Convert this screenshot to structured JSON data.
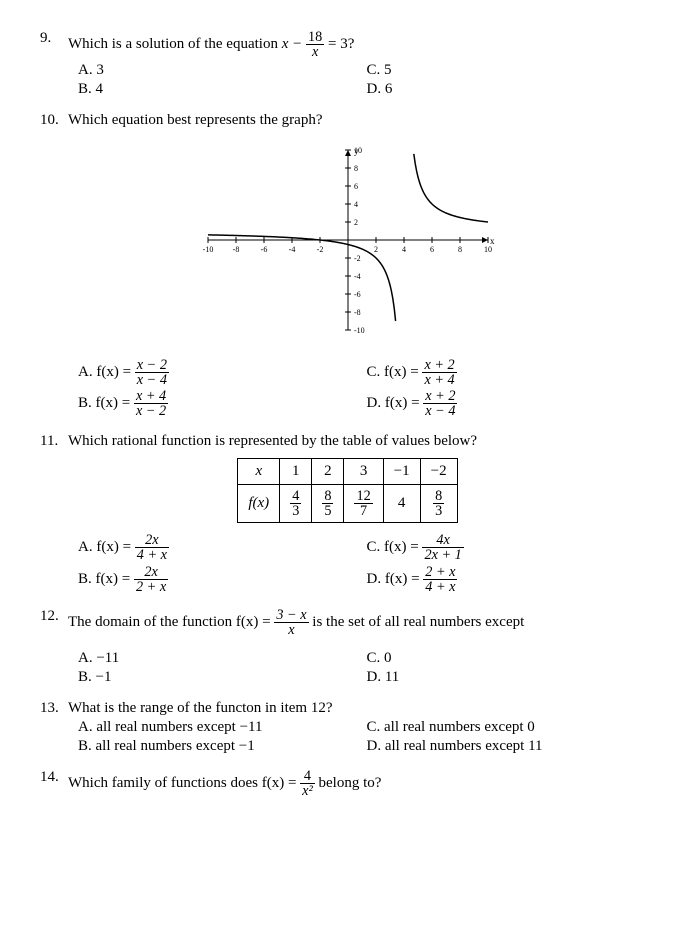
{
  "q9": {
    "number": "9.",
    "text_before": "Which is a solution of the equation ",
    "eq_lhs_prefix": "x −",
    "eq_frac_num": "18",
    "eq_frac_den": "x",
    "eq_rhs": " = 3?",
    "A": "A.  3",
    "B": "B.  4",
    "C": "C. 5",
    "D": "D. 6"
  },
  "q10": {
    "number": "10.",
    "text": "Which equation best represents the graph?",
    "graph": {
      "x_min": -10,
      "x_max": 10,
      "y_min": -10,
      "y_max": 10,
      "tick_step": 2,
      "axis_color": "#000000",
      "curve_color": "#000000",
      "grid_color": "#cccccc",
      "background": "#ffffff",
      "x_ticks": [
        -10,
        -8,
        -6,
        -4,
        -2,
        2,
        4,
        6,
        8,
        10
      ],
      "y_ticks": [
        -10,
        -8,
        -6,
        -4,
        -2,
        2,
        4,
        6,
        8,
        10
      ],
      "asymptote_h": 1,
      "asymptote_v": 0,
      "label_fontsize": 8
    },
    "A_pre": "A.  f(x) =",
    "A_num": "x − 2",
    "A_den": "x − 4",
    "B_pre": "B.  f(x) =",
    "B_num": "x + 4",
    "B_den": "x − 2",
    "C_pre": "C.  f(x) =",
    "C_num": "x + 2",
    "C_den": "x + 4",
    "D_pre": "D.  f(x) =",
    "D_num": "x + 2",
    "D_den": "x − 4"
  },
  "q11": {
    "number": "11.",
    "text": "Which rational function is represented by the table of values below?",
    "table": {
      "header": [
        "x",
        "1",
        "2",
        "3",
        "−1",
        "−2"
      ],
      "row_label": "f(x)",
      "cells": [
        {
          "n": "4",
          "d": "3"
        },
        {
          "n": "8",
          "d": "5"
        },
        {
          "n": "12",
          "d": "7"
        },
        {
          "plain": "4"
        },
        {
          "n": "8",
          "d": "3"
        }
      ]
    },
    "A_pre": "A.  f(x) =",
    "A_num": "2x",
    "A_den": "4 + x",
    "B_pre": "B.  f(x) =",
    "B_num": "2x",
    "B_den": "2 + x",
    "C_pre": "C.  f(x) =",
    "C_num": "4x",
    "C_den": "2x + 1",
    "D_pre": "D.  f(x) =",
    "D_num": "2 + x",
    "D_den": "4 + x"
  },
  "q12": {
    "number": "12.",
    "text_before": "The domain of the function  f(x) =",
    "frac_num": "3 − x",
    "frac_den": "x",
    "text_after": "  is the set of all real numbers except",
    "A": "A.  −11",
    "B": "B.  −1",
    "C": "C. 0",
    "D": "D. 11"
  },
  "q13": {
    "number": "13.",
    "text": "What is the range of the functon in item 12?",
    "A": "A. all real numbers except −11",
    "B": "B. all real numbers except −1",
    "C": "C. all real numbers except 0",
    "D": "D. all real numbers except 11"
  },
  "q14": {
    "number": "14.",
    "text_before": "Which family of functions does  f(x) =",
    "frac_num": "4",
    "frac_den": "x²",
    "text_after": "  belong to?"
  }
}
